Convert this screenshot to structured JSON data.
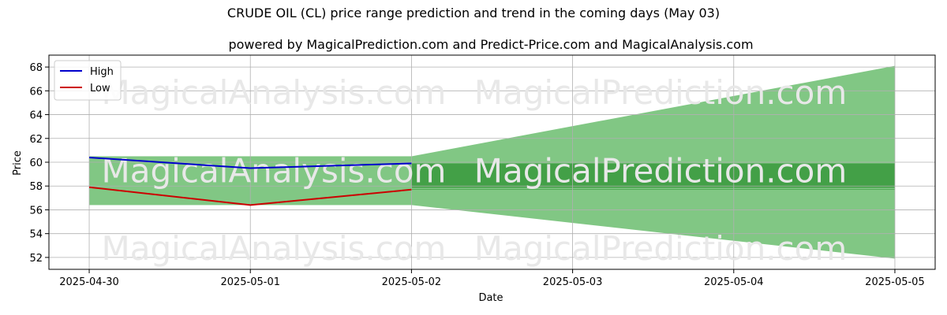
{
  "chart_data": {
    "type": "line",
    "title": "CRUDE OIL (CL) price range prediction and trend in the coming days (May 03)",
    "subtitle": "powered by MagicalPrediction.com and Predict-Price.com and MagicalAnalysis.com",
    "xlabel": "Date",
    "ylabel": "Price",
    "x_ticks": [
      "2025-04-30",
      "2025-05-01",
      "2025-05-02",
      "2025-05-03",
      "2025-05-04",
      "2025-05-05"
    ],
    "y_ticks": [
      52,
      54,
      56,
      58,
      60,
      62,
      64,
      66,
      68
    ],
    "ylim": [
      51.0,
      69.0
    ],
    "xlim_days": [
      -0.25,
      5.25
    ],
    "grid": true,
    "legend_position": "top-left",
    "series": [
      {
        "name": "High",
        "color": "#0000cc",
        "x": [
          0,
          1,
          2
        ],
        "values": [
          60.4,
          59.5,
          59.9
        ]
      },
      {
        "name": "Low",
        "color": "#cc0000",
        "x": [
          0,
          1,
          2
        ],
        "values": [
          57.9,
          56.4,
          57.7
        ]
      }
    ],
    "history_band": {
      "x": [
        0,
        2
      ],
      "upper": 60.5,
      "lower": 56.4,
      "color": "#81c784"
    },
    "forecast_range": {
      "x": [
        2,
        5
      ],
      "upper": [
        60.5,
        68.1
      ],
      "lower": [
        56.4,
        51.9
      ],
      "color": "#81c784"
    },
    "forecast_band": {
      "x": [
        2,
        5
      ],
      "upper": 59.9,
      "lower": 57.7,
      "color": "#43a047"
    },
    "forecast_midline": {
      "x": [
        2,
        5
      ],
      "value": 57.8,
      "color": "#81c784"
    },
    "watermarks": [
      "MagicalAnalysis.com",
      "MagicalPrediction.com"
    ]
  }
}
